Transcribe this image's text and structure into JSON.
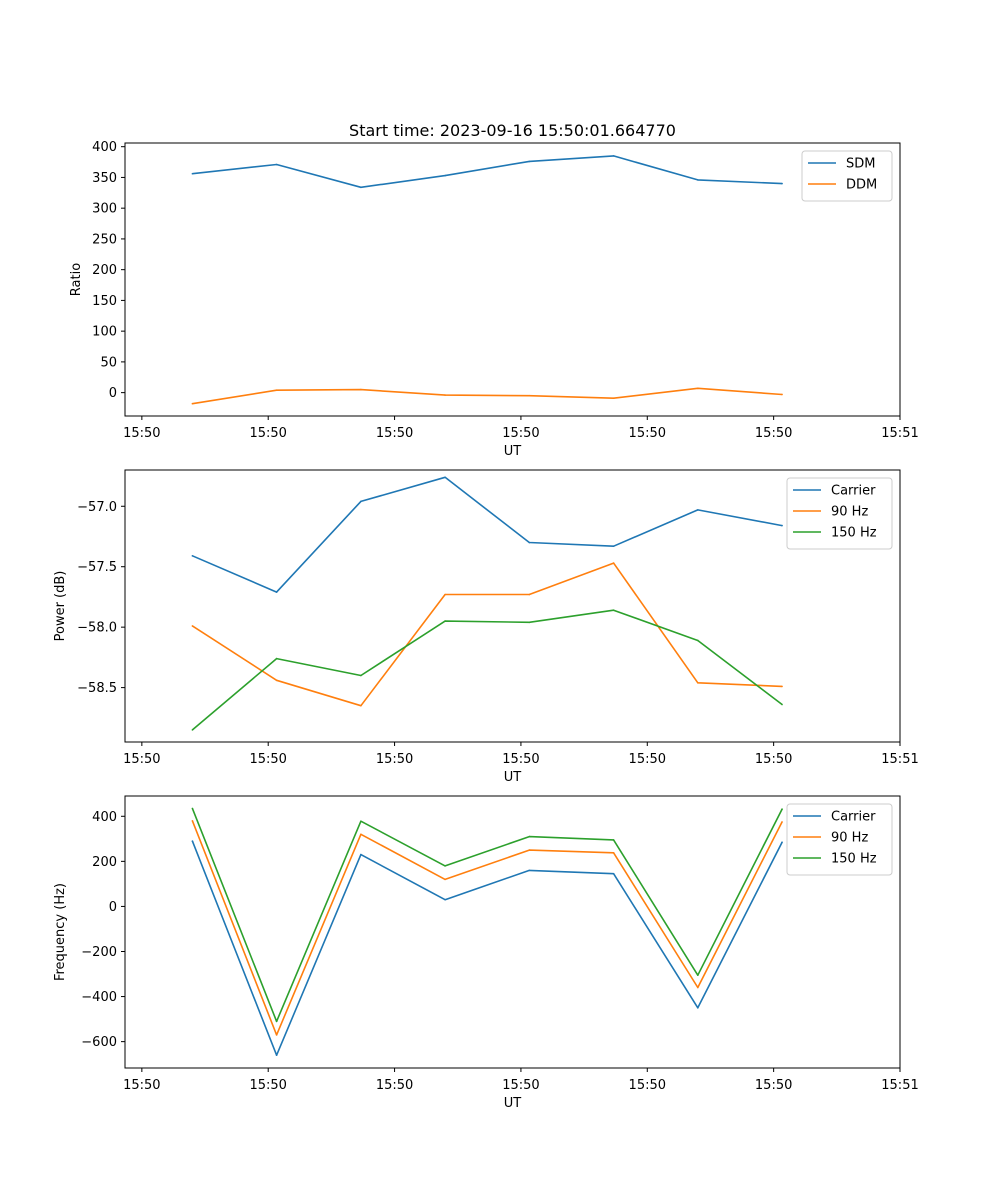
{
  "colors": {
    "blue": "#1f77b4",
    "orange": "#ff7f0e",
    "green": "#2ca02c"
  },
  "chart_data": [
    {
      "type": "line",
      "title": "Start time: 2023-09-16 15:50:01.664770",
      "xlabel": "UT",
      "ylabel": "Ratio",
      "x": [
        1,
        2,
        3,
        4,
        5,
        6,
        7,
        8
      ],
      "xlim": [
        0.2,
        9.4
      ],
      "xticks": [
        0.4,
        1.9,
        3.4,
        4.9,
        6.4,
        7.9,
        9.4
      ],
      "xticklabels": [
        "15:50",
        "15:50",
        "15:50",
        "15:50",
        "15:50",
        "15:50",
        "15:51"
      ],
      "ylim": [
        -38,
        406
      ],
      "yticks": [
        0,
        50,
        100,
        150,
        200,
        250,
        300,
        350,
        400
      ],
      "yticklabels": [
        "0",
        "50",
        "100",
        "150",
        "200",
        "250",
        "300",
        "350",
        "400"
      ],
      "legend": "top-right",
      "series": [
        {
          "name": "SDM",
          "color": "blue",
          "values": [
            356,
            371,
            334,
            353,
            376,
            385,
            346,
            340
          ]
        },
        {
          "name": "DDM",
          "color": "orange",
          "values": [
            -18,
            4,
            5,
            -4,
            -5,
            -9,
            7,
            -3
          ]
        }
      ]
    },
    {
      "type": "line",
      "title": "",
      "xlabel": "UT",
      "ylabel": "Power (dB)",
      "x": [
        1,
        2,
        3,
        4,
        5,
        6,
        7,
        8
      ],
      "xlim": [
        0.2,
        9.4
      ],
      "xticks": [
        0.4,
        1.9,
        3.4,
        4.9,
        6.4,
        7.9,
        9.4
      ],
      "xticklabels": [
        "15:50",
        "15:50",
        "15:50",
        "15:50",
        "15:50",
        "15:50",
        "15:51"
      ],
      "ylim": [
        -58.95,
        -56.7
      ],
      "yticks": [
        -58.5,
        -58.0,
        -57.5,
        -57.0
      ],
      "yticklabels": [
        "−58.5",
        "−58.0",
        "−57.5",
        "−57.0"
      ],
      "legend": "top-right",
      "series": [
        {
          "name": "Carrier",
          "color": "blue",
          "values": [
            -57.41,
            -57.71,
            -56.96,
            -56.76,
            -57.3,
            -57.33,
            -57.03,
            -57.16
          ]
        },
        {
          "name": "90 Hz",
          "color": "orange",
          "values": [
            -57.99,
            -58.44,
            -58.65,
            -57.73,
            -57.73,
            -57.47,
            -58.46,
            -58.49
          ]
        },
        {
          "name": "150 Hz",
          "color": "green",
          "values": [
            -58.85,
            -58.26,
            -58.4,
            -57.95,
            -57.96,
            -57.86,
            -58.11,
            -58.64
          ]
        }
      ]
    },
    {
      "type": "line",
      "title": "",
      "xlabel": "UT",
      "ylabel": "Frequency (Hz)",
      "x": [
        1,
        2,
        3,
        4,
        5,
        6,
        7,
        8
      ],
      "xlim": [
        0.2,
        9.4
      ],
      "xticks": [
        0.4,
        1.9,
        3.4,
        4.9,
        6.4,
        7.9,
        9.4
      ],
      "xticklabels": [
        "15:50",
        "15:50",
        "15:50",
        "15:50",
        "15:50",
        "15:50",
        "15:51"
      ],
      "ylim": [
        -717,
        490
      ],
      "yticks": [
        -600,
        -400,
        -200,
        0,
        200,
        400
      ],
      "yticklabels": [
        "−600",
        "−400",
        "−200",
        "0",
        "200",
        "400"
      ],
      "legend": "top-right",
      "series": [
        {
          "name": "Carrier",
          "color": "blue",
          "values": [
            290,
            -660,
            230,
            30,
            160,
            145,
            -450,
            285
          ]
        },
        {
          "name": "90 Hz",
          "color": "orange",
          "values": [
            380,
            -570,
            320,
            120,
            250,
            238,
            -360,
            375
          ]
        },
        {
          "name": "150 Hz",
          "color": "green",
          "values": [
            435,
            -510,
            378,
            180,
            310,
            295,
            -305,
            432
          ]
        }
      ]
    }
  ]
}
